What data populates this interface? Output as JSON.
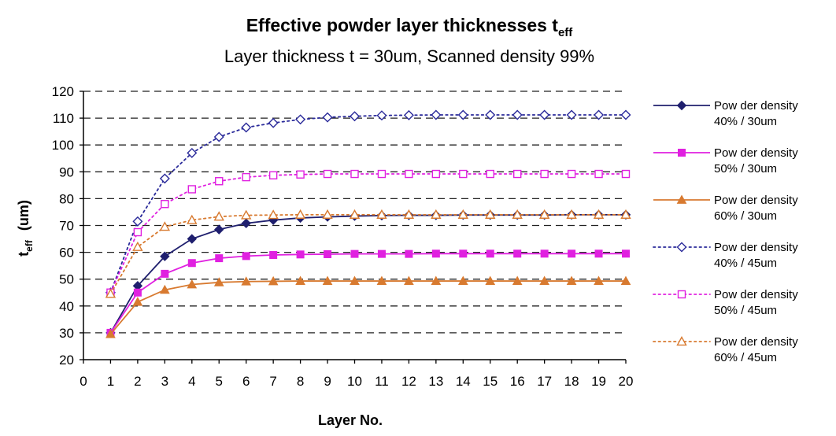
{
  "chart_data": {
    "type": "line",
    "title": "Effective powder layer thicknesses t",
    "title_subscript": "eff",
    "subtitle": "Layer thickness t = 30um, Scanned density 99%",
    "xlabel": "Layer No.",
    "ylabel": "t",
    "ylabel_subscript": "eff",
    "ylabel_unit": "(um)",
    "xlim": [
      0,
      20
    ],
    "ylim": [
      20,
      120
    ],
    "xticks": [
      "0",
      "1",
      "2",
      "3",
      "4",
      "5",
      "6",
      "7",
      "8",
      "9",
      "10",
      "11",
      "12",
      "13",
      "14",
      "15",
      "16",
      "17",
      "18",
      "19",
      "20"
    ],
    "yticks": [
      "20",
      "30",
      "40",
      "50",
      "60",
      "70",
      "80",
      "90",
      "100",
      "110",
      "120"
    ],
    "grid": "horizontal dashed",
    "legend_position": "right",
    "x": [
      1,
      2,
      3,
      4,
      5,
      6,
      7,
      8,
      9,
      10,
      11,
      12,
      13,
      14,
      15,
      16,
      17,
      18,
      19,
      20
    ],
    "series": [
      {
        "name": "Powder density 40% / 30um",
        "color": "#1f1f6e",
        "line": "solid",
        "marker": "diamond-filled",
        "values": [
          30,
          47.5,
          58.5,
          65,
          68.5,
          70.8,
          72,
          72.8,
          73.2,
          73.5,
          73.7,
          73.8,
          73.8,
          73.9,
          73.9,
          73.9,
          73.9,
          74,
          74,
          74
        ]
      },
      {
        "name": "Powder density 50% / 30um",
        "color": "#e020e0",
        "line": "solid",
        "marker": "square-filled",
        "values": [
          30,
          45,
          52,
          56,
          57.8,
          58.6,
          59,
          59.2,
          59.3,
          59.4,
          59.4,
          59.4,
          59.5,
          59.5,
          59.5,
          59.5,
          59.5,
          59.5,
          59.5,
          59.5
        ]
      },
      {
        "name": "Powder density 60% / 30um",
        "color": "#d87a30",
        "line": "solid",
        "marker": "triangle-filled",
        "values": [
          29.5,
          41.5,
          46,
          48,
          48.8,
          49.1,
          49.2,
          49.3,
          49.3,
          49.3,
          49.3,
          49.3,
          49.3,
          49.3,
          49.3,
          49.3,
          49.3,
          49.3,
          49.3,
          49.3
        ]
      },
      {
        "name": "Powder density 40% / 45um",
        "color": "#2a2a9a",
        "line": "dotted",
        "marker": "diamond-open",
        "values": [
          45,
          71.5,
          87.5,
          97,
          103,
          106.5,
          108.2,
          109.5,
          110.3,
          110.7,
          111,
          111.1,
          111.2,
          111.2,
          111.2,
          111.2,
          111.2,
          111.2,
          111.2,
          111.2
        ]
      },
      {
        "name": "Powder density 50% / 45um",
        "color": "#e020e0",
        "line": "dotted",
        "marker": "square-open",
        "values": [
          45,
          67.5,
          78,
          83.5,
          86.5,
          88,
          88.7,
          89,
          89.2,
          89.2,
          89.2,
          89.2,
          89.2,
          89.2,
          89.2,
          89.2,
          89.2,
          89.2,
          89.2,
          89.2
        ]
      },
      {
        "name": "Powder density 60% / 45um",
        "color": "#d87a30",
        "line": "dotted",
        "marker": "triangle-open",
        "values": [
          44.5,
          62,
          69.5,
          72,
          73.3,
          73.8,
          73.9,
          74,
          74,
          74,
          74,
          74,
          74,
          74,
          74,
          74,
          74,
          74,
          74,
          74
        ]
      }
    ],
    "legend_labels": [
      [
        "Pow der density",
        "40% / 30um"
      ],
      [
        "Pow der density",
        "50% / 30um"
      ],
      [
        "Pow der density",
        "60% / 30um"
      ],
      [
        "Pow der density",
        "40% / 45um"
      ],
      [
        "Pow der density",
        "50% / 45um"
      ],
      [
        "Pow der density",
        "60% / 45um"
      ]
    ]
  }
}
